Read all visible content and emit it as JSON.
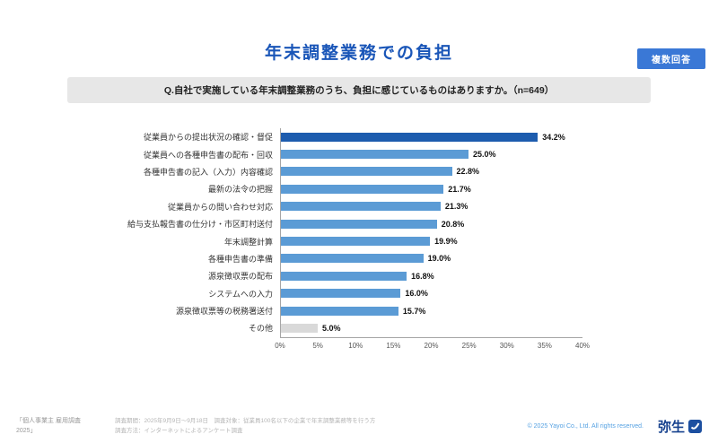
{
  "badge": "複数回答",
  "title": "年末調整業務での負担",
  "question": "Q.自社で実施している年末調整業務のうち、負担に感じているものはありますか。（n=649）",
  "chart_data": {
    "type": "bar",
    "orientation": "horizontal",
    "title": "年末調整業務での負担",
    "categories": [
      "従業員からの提出状況の確認・督促",
      "従業員への各種申告書の配布・回収",
      "各種申告書の記入（入力）内容確認",
      "最新の法令の把握",
      "従業員からの問い合わせ対応",
      "給与支払報告書の仕分け・市区町村送付",
      "年末調整計算",
      "各種申告書の準備",
      "源泉徴収票の配布",
      "システムへの入力",
      "源泉徴収票等の税務署送付",
      "その他"
    ],
    "values": [
      34.2,
      25.0,
      22.8,
      21.7,
      21.3,
      20.8,
      19.9,
      19.0,
      16.8,
      16.0,
      15.7,
      5.0
    ],
    "value_labels": [
      "34.2%",
      "25.0%",
      "22.8%",
      "21.7%",
      "21.3%",
      "20.8%",
      "19.9%",
      "19.0%",
      "16.8%",
      "16.0%",
      "15.7%",
      "5.0%"
    ],
    "xlim": [
      0,
      40
    ],
    "x_ticks": [
      "0%",
      "5%",
      "10%",
      "15%",
      "20%",
      "25%",
      "30%",
      "35%",
      "40%"
    ],
    "legend": "none",
    "grid": "off",
    "colors": {
      "highlight": "#1d5cae",
      "default": "#5b9bd5",
      "other": "#d9d9d9"
    }
  },
  "footer": {
    "source": "「個人事業主 雇用調査 2025」",
    "note_line1": "調査期間：2025年9月9日～9月18日　調査対象：従業員100名以下の企業で年末調整業務等を行う方",
    "note_line2": "調査方法：インターネットによるアンケート調査",
    "copyright": "© 2025 Yayoi Co., Ltd.  All rights reserved.",
    "logo_text": "弥生"
  }
}
